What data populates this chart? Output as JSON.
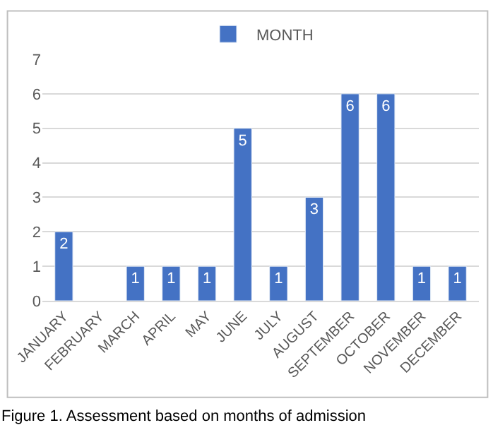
{
  "chart_data": {
    "type": "bar",
    "categories": [
      "JANUARY",
      "FEBRUARY",
      "MARCH",
      "APRIL",
      "MAY",
      "JUNE",
      "JULY",
      "AUGUST",
      "SEPTEMBER",
      "OCTOBER",
      "NOVEMBER",
      "DECEMBER"
    ],
    "series": [
      {
        "name": "MONTH",
        "color": "#4472c4",
        "values": [
          2,
          null,
          1,
          1,
          1,
          5,
          1,
          3,
          6,
          6,
          1,
          1
        ],
        "value_labels": [
          "2",
          null,
          "1",
          "1",
          "1",
          "5",
          "1",
          "3",
          "6",
          "6",
          "1",
          "1"
        ]
      }
    ],
    "ylim": [
      0,
      7
    ],
    "yticks": [
      0,
      1,
      2,
      3,
      4,
      5,
      6,
      7
    ],
    "grid": "y",
    "legend": "top",
    "annotations": [
      "Figure 1. Assessment based on months of admission"
    ]
  }
}
